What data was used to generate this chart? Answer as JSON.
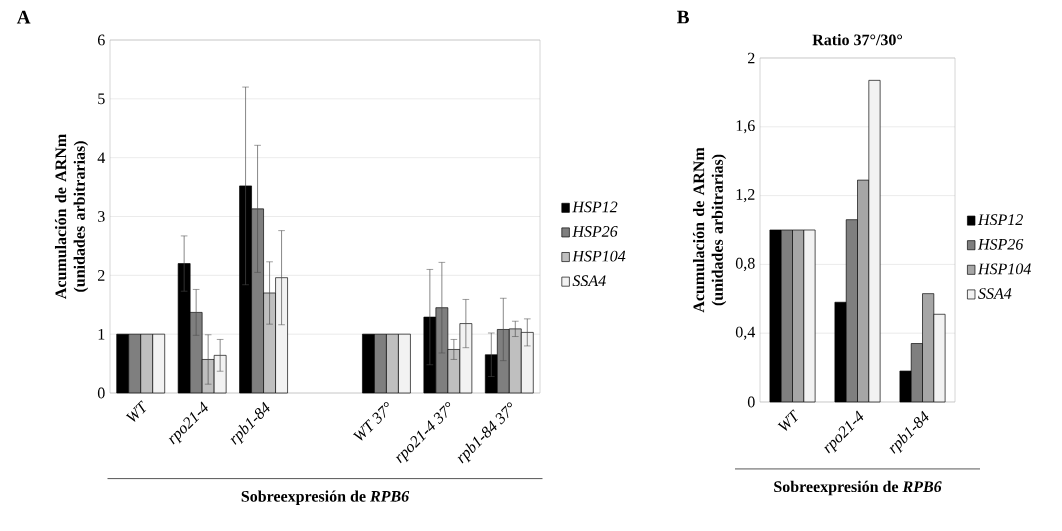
{
  "chart_data": [
    {
      "type": "bar",
      "annotations": [
        "A"
      ],
      "ylabel": "Acumulación de ARNm (unidades arbitrarias)",
      "xlabel": "Sobreexpresión de *RPB6*",
      "categories": [
        "WT",
        "rpo21-4",
        "rpb1-84",
        null,
        "WT 37°",
        "rpo21-4  37°",
        "rpb1-84 37°"
      ],
      "series": [
        {
          "name": "HSP12",
          "color": "#000000",
          "values": [
            1,
            2.2,
            3.52,
            null,
            1,
            1.29,
            0.65
          ],
          "errors": [
            null,
            0.47,
            1.68,
            null,
            null,
            0.81,
            0.37
          ]
        },
        {
          "name": "HSP26",
          "color": "#7f7f7f",
          "values": [
            1,
            1.37,
            3.13,
            null,
            1,
            1.45,
            1.08
          ],
          "errors": [
            null,
            0.39,
            1.08,
            null,
            null,
            0.77,
            0.53
          ]
        },
        {
          "name": "HSP104",
          "color": "#bfbfbf",
          "values": [
            1,
            0.57,
            1.7,
            null,
            1,
            0.74,
            1.09
          ],
          "errors": [
            null,
            0.42,
            0.53,
            null,
            null,
            0.17,
            0.13
          ]
        },
        {
          "name": "SSA4",
          "color": "#f2f2f2",
          "values": [
            1,
            0.64,
            1.96,
            null,
            1,
            1.18,
            1.03
          ],
          "errors": [
            null,
            0.27,
            0.8,
            null,
            null,
            0.41,
            0.23
          ]
        }
      ],
      "ylim": [
        0,
        6
      ],
      "yticks": [
        0,
        1,
        2,
        3,
        4,
        5,
        6
      ],
      "grid": "y",
      "legend": "right"
    },
    {
      "type": "bar",
      "annotations": [
        "B"
      ],
      "title": "Ratio 37°/30°",
      "ylabel": "Acumulación de ARNm (unidades arbitrarias)",
      "xlabel": "Sobreexpresión de *RPB6*",
      "categories": [
        "WT",
        "rpo21-4",
        "rpb1-84"
      ],
      "series": [
        {
          "name": "HSP12",
          "color": "#000000",
          "values": [
            1,
            0.58,
            0.18
          ]
        },
        {
          "name": "HSP26",
          "color": "#7f7f7f",
          "values": [
            1,
            1.06,
            0.34
          ]
        },
        {
          "name": "HSP104",
          "color": "#a6a6a6",
          "values": [
            1,
            1.29,
            0.63
          ]
        },
        {
          "name": "SSA4",
          "color": "#f2f2f2",
          "values": [
            1,
            1.87,
            0.51
          ]
        }
      ],
      "ylim": [
        0,
        2
      ],
      "yticks": [
        0,
        {
          "value": 0.4,
          "label": "0,4"
        },
        {
          "value": 0.8,
          "label": "0,8"
        },
        {
          "value": 1.2,
          "label": "1,2"
        },
        {
          "value": 1.6,
          "label": "1,6"
        },
        2
      ],
      "grid": "y",
      "legend": "right"
    }
  ]
}
